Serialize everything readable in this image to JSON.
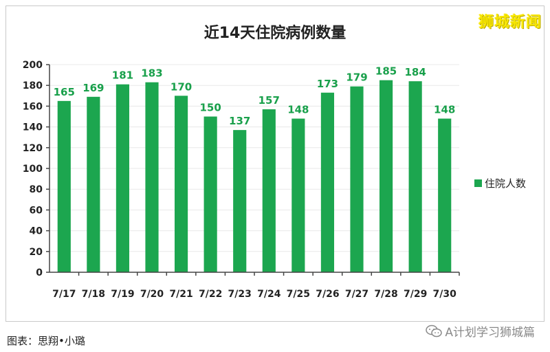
{
  "watermark": "狮城新闻",
  "caption": "图表：思翔•小璐",
  "footer_watermark": "A计划学习狮城篇",
  "chart_data": {
    "type": "bar",
    "title": "近14天住院病例数量",
    "categories": [
      "7/17",
      "7/18",
      "7/19",
      "7/20",
      "7/21",
      "7/22",
      "7/23",
      "7/24",
      "7/25",
      "7/26",
      "7/27",
      "7/28",
      "7/29",
      "7/30"
    ],
    "series": [
      {
        "name": "住院人数",
        "values": [
          165,
          169,
          181,
          183,
          170,
          150,
          137,
          157,
          148,
          173,
          179,
          185,
          184,
          148
        ],
        "color": "#1ca64f"
      }
    ],
    "ylim": [
      0,
      200
    ],
    "yticks": [
      0,
      20,
      40,
      60,
      80,
      100,
      120,
      140,
      160,
      180,
      200
    ],
    "xlabel": "",
    "ylabel": "",
    "grid": true,
    "legend": "right",
    "data_labels": true
  },
  "colors": {
    "bar": "#1ca64f",
    "label": "#19a04b"
  }
}
